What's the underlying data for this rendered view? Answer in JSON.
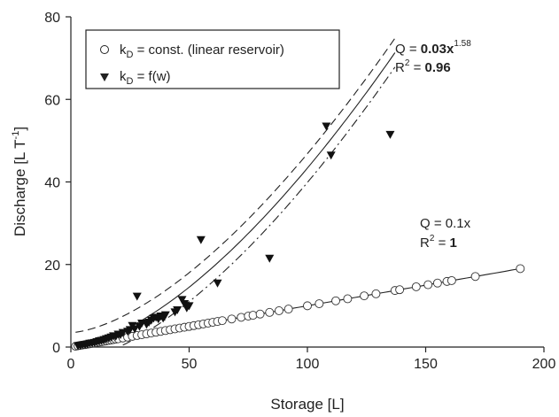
{
  "chart_data": {
    "type": "scatter",
    "title": "",
    "xlabel": "Storage [L]",
    "ylabel": "Discharge [L T-1]",
    "ylabel_main": "Discharge [L T",
    "ylabel_sup": "-1",
    "ylabel_end": "]",
    "xlim": [
      0,
      200
    ],
    "ylim": [
      0,
      80
    ],
    "xticks": [
      "0",
      "50",
      "100",
      "150",
      "200"
    ],
    "yticks": [
      "0",
      "20",
      "40",
      "60",
      "80"
    ],
    "grid": false,
    "legend_position": "top-left",
    "legend": {
      "item1": {
        "pre": "k",
        "sub": "D",
        "post": " = const. (linear reservoir)"
      },
      "item2": {
        "pre": "k",
        "sub": "D",
        "post": " = f(w)"
      }
    },
    "annotations": {
      "power_eq_lhs": "Q = ",
      "power_eq_rhs": "0.03x",
      "power_eq_exp": "1.58",
      "power_r2_lhs": "R",
      "power_r2_sup": "2",
      "power_r2_eq": " = ",
      "power_r2_val": "0.96",
      "linear_eq": "Q = 0.1x",
      "linear_r2_lhs": "R",
      "linear_r2_sup": "2",
      "linear_r2_eq": " = ",
      "linear_r2_val": "1"
    },
    "series": [
      {
        "name": "kD = const. (linear reservoir)",
        "marker": "open-circle",
        "x": [
          2,
          3,
          4,
          5,
          6,
          7,
          8,
          9,
          10,
          11,
          12,
          13,
          14,
          15,
          16,
          17,
          18,
          19,
          20,
          22,
          24,
          26,
          28,
          30,
          32,
          34,
          36,
          38,
          40,
          42,
          44,
          46,
          48,
          50,
          52,
          54,
          56,
          58,
          60,
          62,
          64,
          68,
          72,
          75,
          77,
          80,
          84,
          88,
          92,
          100,
          105,
          112,
          117,
          124,
          129,
          137,
          139,
          146,
          151,
          155,
          159,
          161,
          171,
          190
        ],
        "y": [
          0.2,
          0.3,
          0.4,
          0.5,
          0.6,
          0.7,
          0.8,
          0.9,
          1.0,
          1.1,
          1.2,
          1.3,
          1.4,
          1.5,
          1.6,
          1.7,
          1.8,
          1.9,
          2.0,
          2.2,
          2.4,
          2.6,
          2.8,
          3.0,
          3.2,
          3.4,
          3.6,
          3.8,
          4.0,
          4.2,
          4.4,
          4.6,
          4.8,
          5.0,
          5.2,
          5.4,
          5.6,
          5.8,
          6.0,
          6.2,
          6.4,
          6.8,
          7.2,
          7.5,
          7.7,
          8.0,
          8.4,
          8.8,
          9.2,
          10.0,
          10.5,
          11.2,
          11.7,
          12.4,
          12.9,
          13.7,
          13.9,
          14.6,
          15.1,
          15.5,
          15.9,
          16.1,
          17.1,
          19.0
        ]
      },
      {
        "name": "kD = f(w)",
        "marker": "filled-triangle-down",
        "x": [
          3,
          4,
          5,
          6,
          7,
          8,
          9,
          10,
          11,
          12,
          13,
          14,
          15,
          16,
          17,
          18,
          19,
          20,
          21,
          22,
          24,
          25,
          26,
          27,
          28,
          29,
          30,
          32,
          33,
          34,
          35,
          36,
          37,
          38,
          39,
          40,
          44,
          45,
          47,
          48,
          49,
          50,
          55,
          62,
          84,
          108,
          110,
          135
        ],
        "y": [
          0.3,
          0.4,
          0.5,
          0.6,
          0.7,
          0.9,
          1.0,
          1.1,
          1.3,
          1.5,
          1.6,
          1.8,
          2.0,
          2.2,
          2.4,
          2.7,
          2.6,
          3.1,
          3.0,
          3.5,
          3.8,
          4.2,
          5.2,
          4.4,
          12.3,
          5.0,
          5.8,
          5.5,
          6.0,
          6.5,
          7.0,
          7.2,
          6.8,
          7.5,
          7.0,
          7.8,
          8.5,
          9.0,
          11.5,
          10.5,
          9.5,
          10.0,
          26.0,
          15.5,
          21.5,
          53.5,
          46.5,
          51.5
        ]
      }
    ],
    "fits": [
      {
        "name": "power fit",
        "a": 0.03,
        "b": 1.58,
        "x_range": [
          2,
          137
        ],
        "style": "solid"
      },
      {
        "name": "power fit upper band",
        "a": 0.03,
        "b": 1.58,
        "offset": 3.5,
        "x_range": [
          2,
          137
        ],
        "style": "dash"
      },
      {
        "name": "power fit lower band",
        "a": 0.03,
        "b": 1.58,
        "offset": -3.5,
        "x_range": [
          22,
          137
        ],
        "style": "dashdot"
      },
      {
        "name": "linear fit",
        "a": 0.1,
        "b": 1,
        "x_range": [
          2,
          191
        ],
        "style": "solid"
      }
    ]
  }
}
